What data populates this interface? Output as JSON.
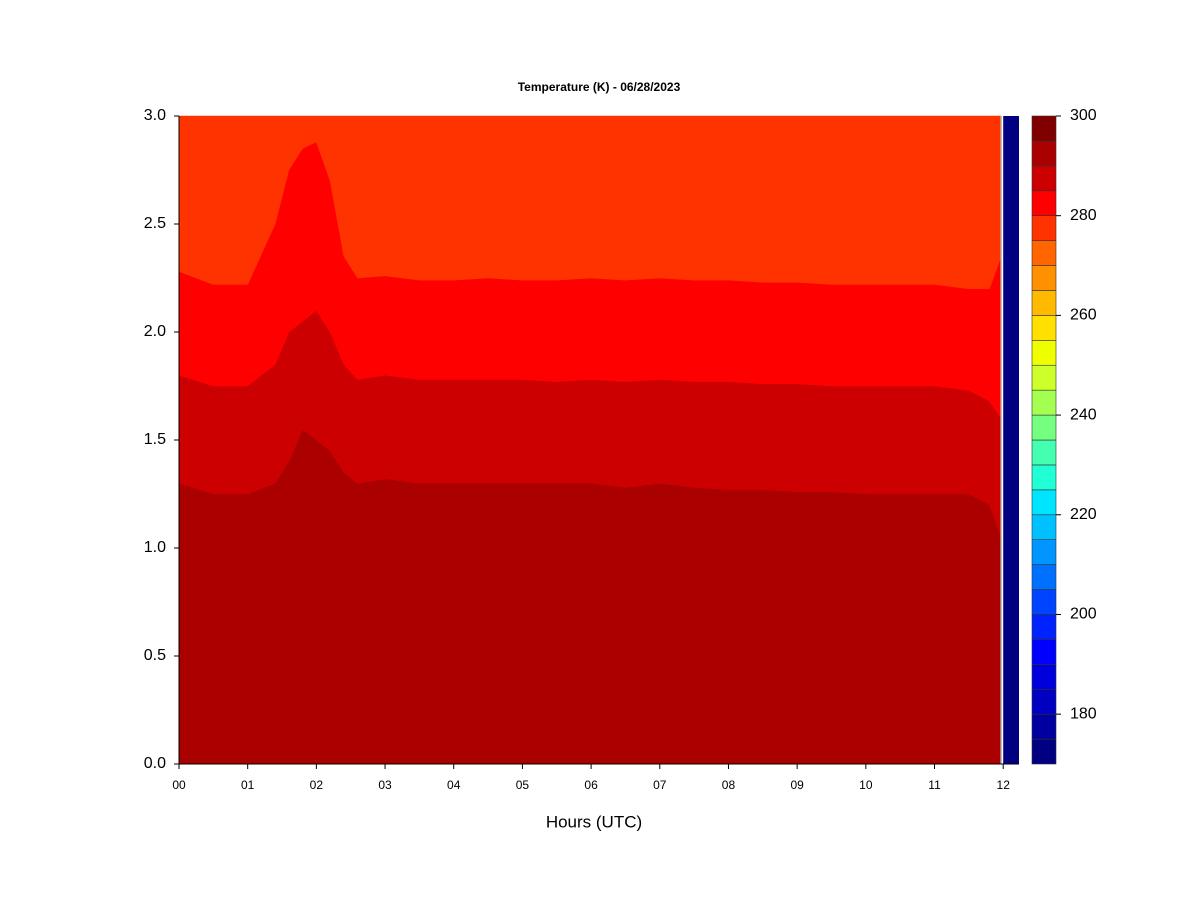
{
  "chart_data": {
    "type": "contour",
    "title": "Temperature (K) - 06/28/2023",
    "xlabel": "Hours (UTC)",
    "xlim": [
      0,
      12.23
    ],
    "ylim": [
      0,
      3
    ],
    "xticks": [
      {
        "value": 0,
        "label": "00"
      },
      {
        "value": 1,
        "label": "01"
      },
      {
        "value": 2,
        "label": "02"
      },
      {
        "value": 3,
        "label": "03"
      },
      {
        "value": 4,
        "label": "04"
      },
      {
        "value": 5,
        "label": "05"
      },
      {
        "value": 6,
        "label": "06"
      },
      {
        "value": 7,
        "label": "07"
      },
      {
        "value": 8,
        "label": "08"
      },
      {
        "value": 9,
        "label": "09"
      },
      {
        "value": 10,
        "label": "10"
      },
      {
        "value": 11,
        "label": "11"
      },
      {
        "value": 12,
        "label": "12"
      }
    ],
    "yticks": [
      {
        "value": 0,
        "label": "0.0"
      },
      {
        "value": 0.5,
        "label": "0.5"
      },
      {
        "value": 1,
        "label": "1.0"
      },
      {
        "value": 1.5,
        "label": "1.5"
      },
      {
        "value": 2,
        "label": "2.0"
      },
      {
        "value": 2.5,
        "label": "2.5"
      },
      {
        "value": 3,
        "label": "3.0"
      }
    ],
    "levels": [
      170,
      175,
      180,
      185,
      190,
      195,
      200,
      205,
      210,
      215,
      220,
      225,
      230,
      235,
      240,
      245,
      250,
      255,
      260,
      265,
      270,
      275,
      280,
      285,
      290,
      295,
      300
    ],
    "colors": [
      "#000080",
      "#0000a0",
      "#0000c0",
      "#0000dd",
      "#0000ff",
      "#0022ff",
      "#0044ff",
      "#0070ff",
      "#0095ff",
      "#00c0ff",
      "#00e5ff",
      "#20ffd5",
      "#45ffb0",
      "#75ff80",
      "#a5ff50",
      "#cdff28",
      "#f0ff00",
      "#ffe000",
      "#ffba00",
      "#ff9000",
      "#ff6600",
      "#ff3300",
      "#ff0000",
      "#cc0000",
      "#aa0000",
      "#800000"
    ],
    "colorbar_ticks": [
      180,
      200,
      220,
      240,
      260,
      280,
      300
    ],
    "x": [
      0,
      0.5,
      1,
      1.4,
      1.6,
      1.8,
      2,
      2.2,
      2.4,
      2.6,
      3,
      3.5,
      4,
      4.5,
      5,
      5.5,
      6,
      6.5,
      7,
      7.5,
      8,
      8.5,
      9,
      9.5,
      10,
      10.5,
      11,
      11.5,
      11.8,
      11.97
    ],
    "boundaries": [
      {
        "level": 290,
        "y": [
          1.3,
          1.25,
          1.25,
          1.3,
          1.4,
          1.55,
          1.5,
          1.45,
          1.35,
          1.3,
          1.32,
          1.3,
          1.3,
          1.3,
          1.3,
          1.3,
          1.3,
          1.28,
          1.3,
          1.28,
          1.27,
          1.27,
          1.26,
          1.26,
          1.25,
          1.25,
          1.25,
          1.25,
          1.2,
          1.05
        ]
      },
      {
        "level": 285,
        "y": [
          1.8,
          1.75,
          1.75,
          1.85,
          2.0,
          2.05,
          2.1,
          2.0,
          1.85,
          1.78,
          1.8,
          1.78,
          1.78,
          1.78,
          1.78,
          1.77,
          1.78,
          1.77,
          1.78,
          1.77,
          1.77,
          1.76,
          1.76,
          1.75,
          1.75,
          1.75,
          1.75,
          1.73,
          1.68,
          1.6
        ]
      },
      {
        "level": 280,
        "y": [
          2.28,
          2.22,
          2.22,
          2.5,
          2.75,
          2.85,
          2.88,
          2.7,
          2.35,
          2.25,
          2.26,
          2.24,
          2.24,
          2.25,
          2.24,
          2.24,
          2.25,
          2.24,
          2.25,
          2.24,
          2.24,
          2.23,
          2.23,
          2.22,
          2.22,
          2.22,
          2.22,
          2.2,
          2.2,
          2.35
        ]
      }
    ],
    "strip": {
      "x": [
        12,
        12.23
      ],
      "level": 170
    }
  }
}
